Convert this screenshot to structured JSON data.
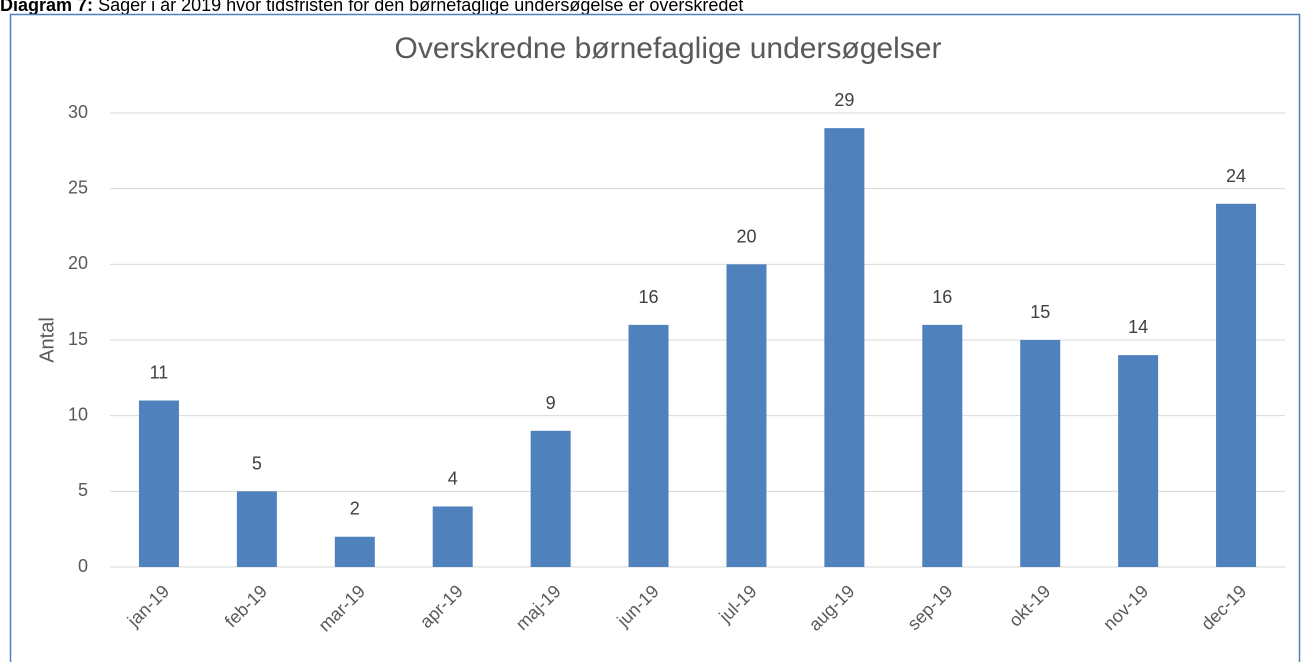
{
  "caption": {
    "label": "Diagram 7:",
    "text": "Sager i år 2019 hvor tidsfristen for den børnefaglige undersøgelse er overskredet"
  },
  "chart_data": {
    "type": "bar",
    "title": "Overskredne børnefaglige undersøgelser",
    "y_label": "Antal",
    "categories": [
      "jan-19",
      "feb-19",
      "mar-19",
      "apr-19",
      "maj-19",
      "jun-19",
      "jul-19",
      "aug-19",
      "sep-19",
      "okt-19",
      "nov-19",
      "dec-19"
    ],
    "values": [
      11,
      5,
      2,
      4,
      9,
      16,
      20,
      29,
      16,
      15,
      14,
      24
    ],
    "color": "#4f81bd",
    "ylim": [
      0,
      30
    ],
    "yticks": [
      0,
      5,
      10,
      15,
      20,
      25,
      30
    ],
    "grid": true,
    "data_labels": true
  }
}
